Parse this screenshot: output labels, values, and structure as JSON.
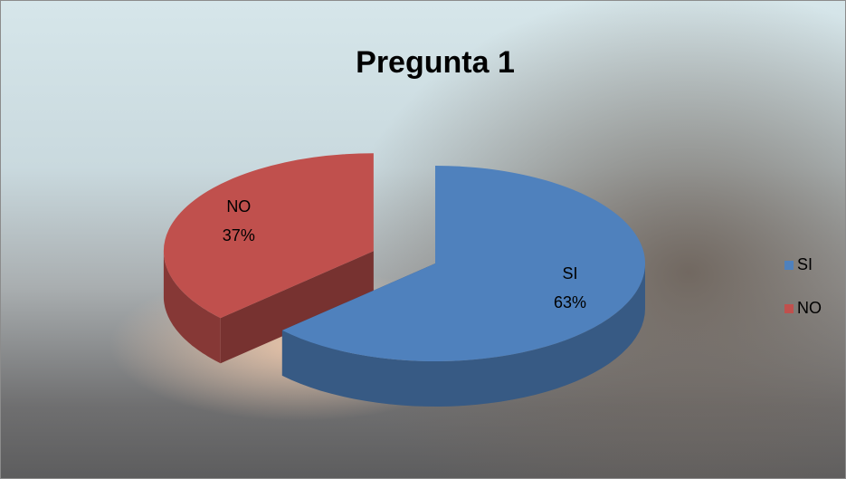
{
  "chart_data": {
    "type": "pie",
    "title": "Pregunta 1",
    "categories": [
      "SI",
      "NO"
    ],
    "values": [
      63,
      37
    ],
    "value_labels": [
      "63%",
      "37%"
    ],
    "colors": [
      "#4f81bd",
      "#c0504d"
    ],
    "legend": "right"
  }
}
